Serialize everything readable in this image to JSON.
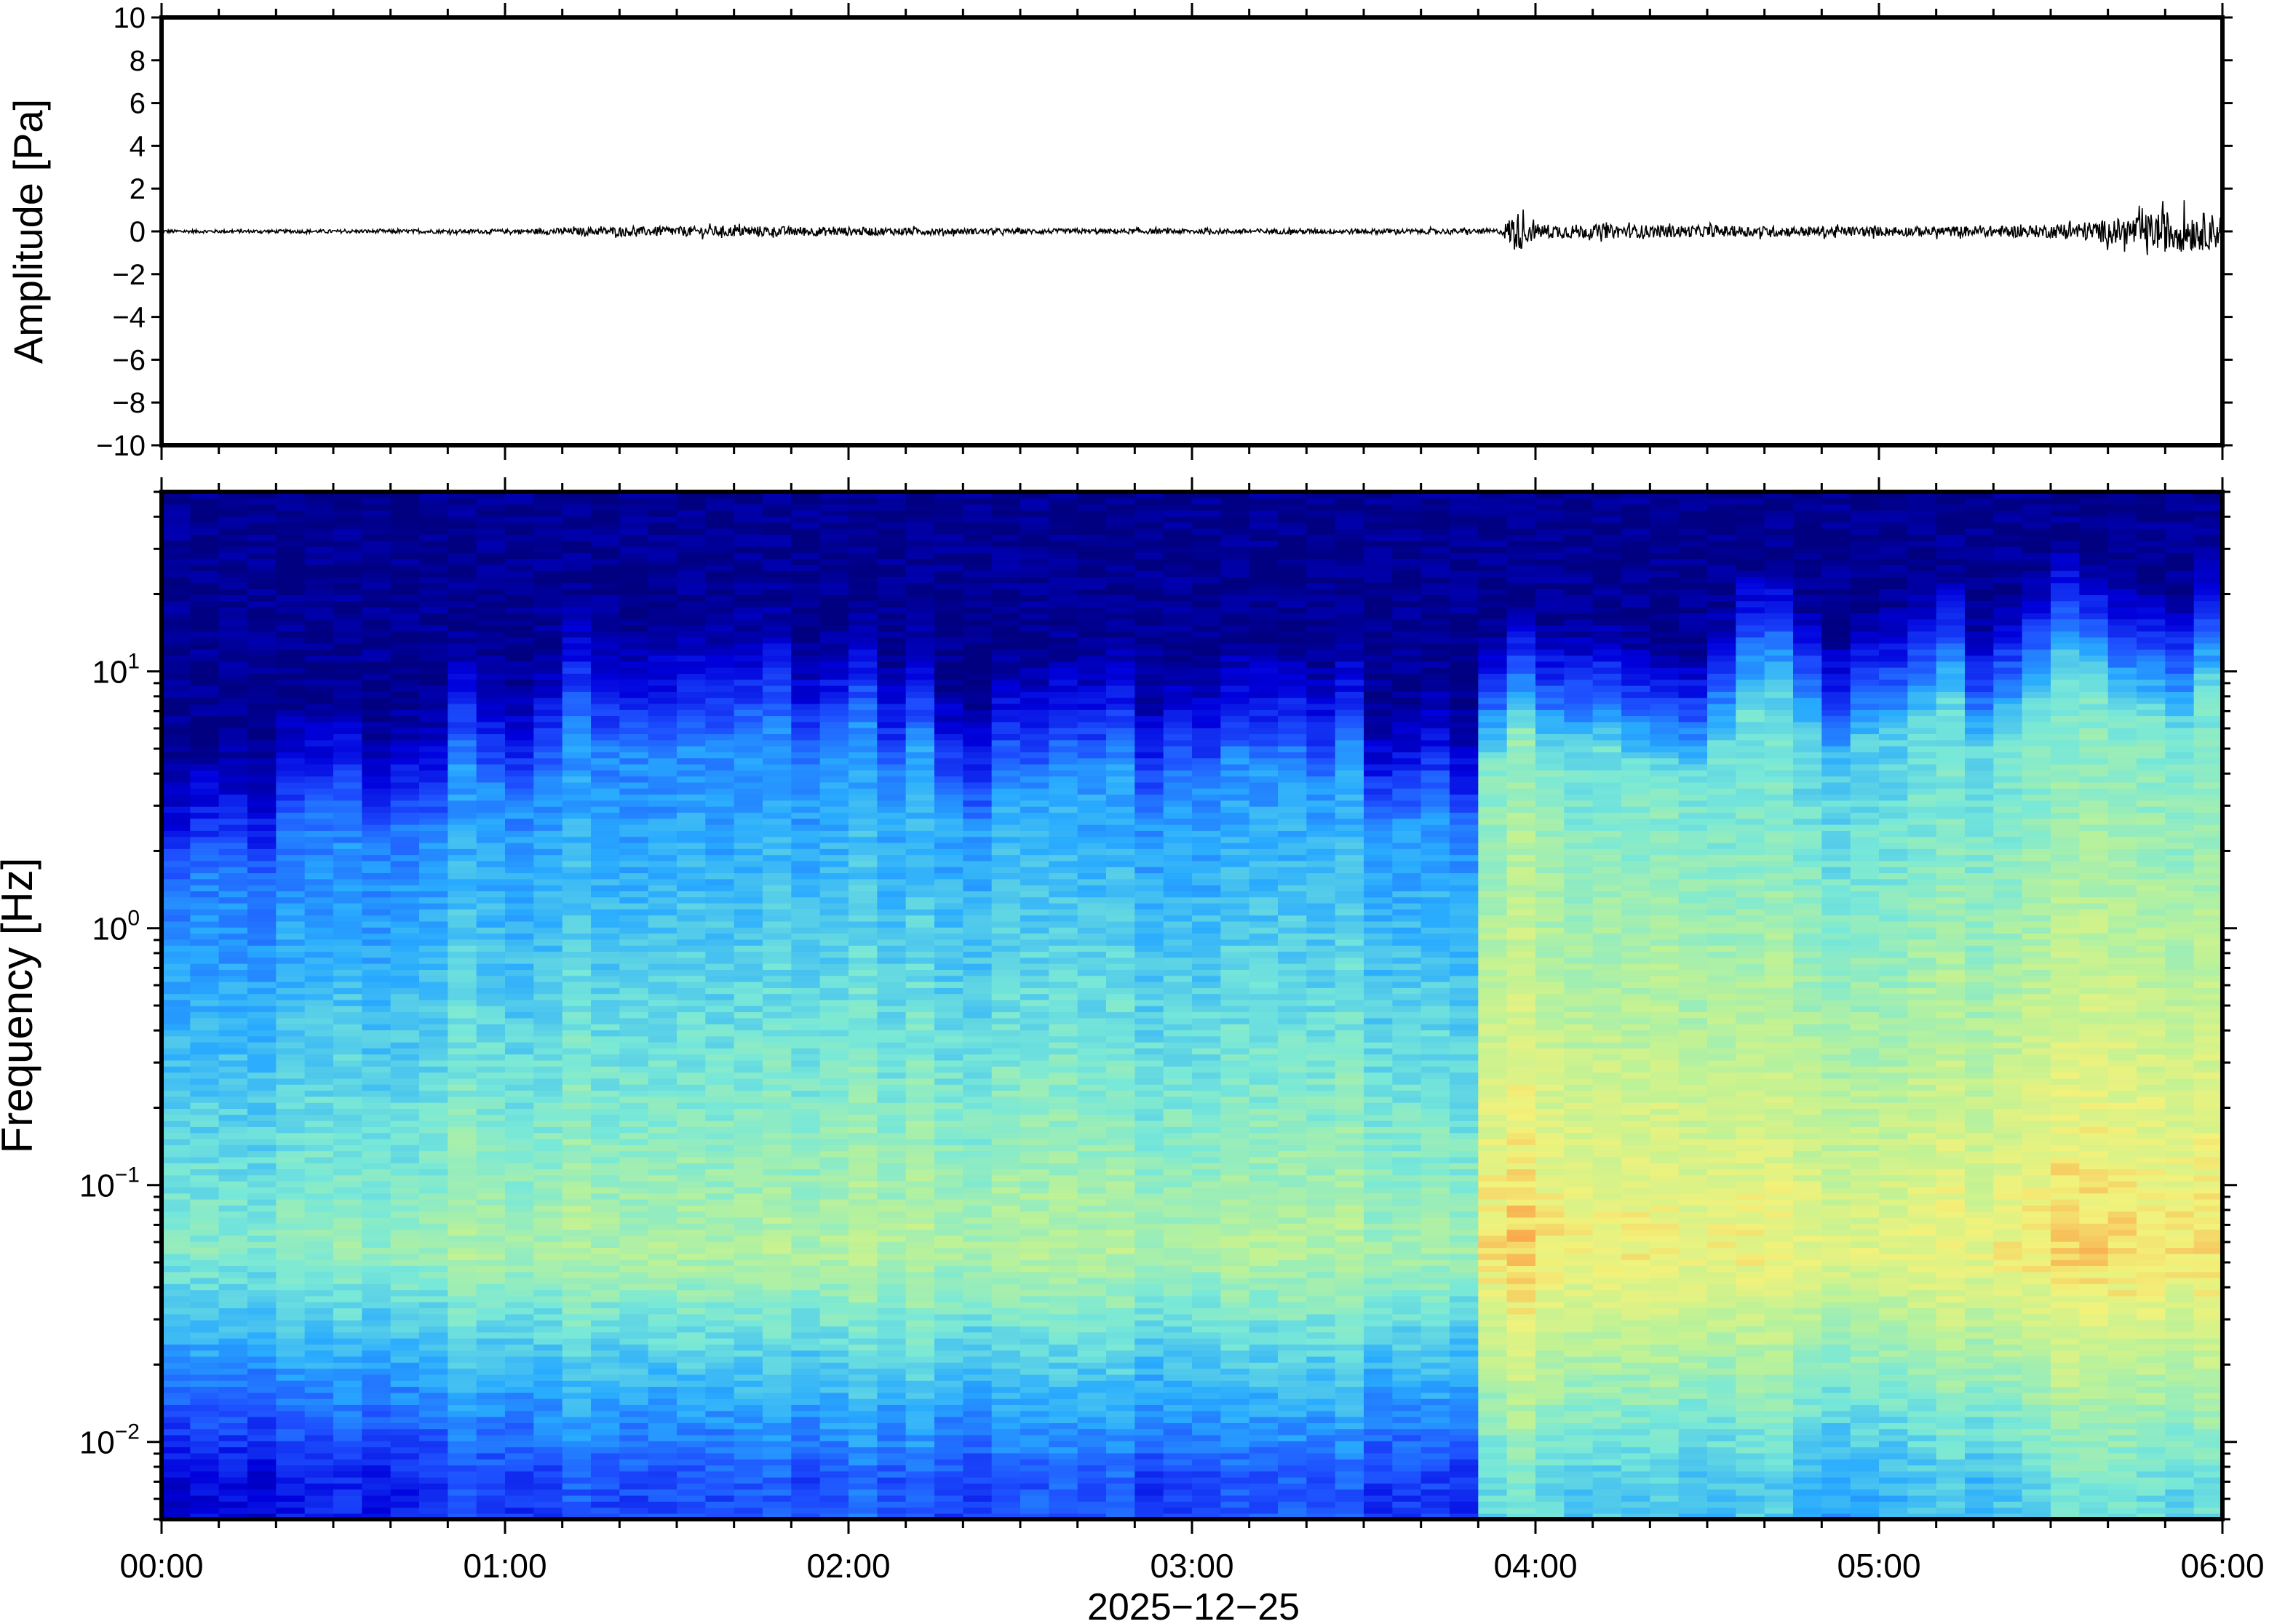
{
  "chart_data": [
    {
      "type": "line",
      "panel": "waveform",
      "ylabel": "Amplitude [Pa]",
      "ylim": [
        -10,
        10
      ],
      "yticks": [
        10,
        8,
        6,
        4,
        2,
        0,
        -2,
        -4,
        -6,
        -8,
        -10
      ],
      "ytick_labels": [
        "10",
        "8",
        "6",
        "4",
        "2",
        "0",
        "−2",
        "−4",
        "−6",
        "−8",
        "−10"
      ],
      "xlim": [
        "00:00",
        "06:00"
      ],
      "series": [
        {
          "color": "#000000",
          "envelope_time_hours": [
            0.0,
            0.5,
            1.0,
            1.3,
            1.7,
            2.0,
            2.5,
            3.0,
            3.5,
            3.9,
            3.94,
            4.0,
            4.3,
            4.6,
            5.0,
            5.3,
            5.5,
            5.7,
            5.85,
            6.0
          ],
          "envelope_amplitude_pa": [
            0.08,
            0.08,
            0.1,
            0.2,
            0.25,
            0.2,
            0.12,
            0.12,
            0.12,
            0.12,
            1.0,
            0.35,
            0.3,
            0.25,
            0.22,
            0.25,
            0.3,
            0.6,
            1.0,
            0.8
          ]
        }
      ],
      "grid": false
    },
    {
      "type": "heatmap",
      "panel": "spectrogram",
      "ylabel": "Frequency [Hz]",
      "yscale": "log",
      "ylim": [
        0.005,
        50
      ],
      "yticks": [
        0.01,
        0.1,
        1,
        10
      ],
      "ytick_labels": [
        {
          "base": "10",
          "exp": "−2"
        },
        {
          "base": "10",
          "exp": "−1"
        },
        {
          "base": "10",
          "exp": "0"
        },
        {
          "base": "10",
          "exp": "1"
        }
      ],
      "xlabel": "2025−12−25",
      "xtick_labels": [
        "00:00",
        "01:00",
        "02:00",
        "03:00",
        "04:00",
        "05:00",
        "06:00"
      ],
      "colormap": "jet",
      "colors": {
        "low": "#000080",
        "mid_low": "#1e50ff",
        "mid": "#78e8d8",
        "mid_high": "#f2f27a",
        "high": "#fb9b42"
      },
      "n_time_bins": 72,
      "n_freq_bins": 170,
      "upper_energy_edge_hz_by_hour": [
        [
          0.0,
          4.0
        ],
        [
          0.3,
          6.0
        ],
        [
          0.8,
          9.0
        ],
        [
          1.2,
          15.0
        ],
        [
          1.7,
          17.0
        ],
        [
          2.0,
          14.0
        ],
        [
          2.5,
          10.0
        ],
        [
          3.0,
          14.0
        ],
        [
          3.5,
          10.0
        ],
        [
          3.85,
          10.0
        ],
        [
          4.1,
          20.0
        ],
        [
          4.4,
          10.0
        ],
        [
          4.6,
          20.0
        ],
        [
          5.0,
          21.0
        ],
        [
          5.5,
          24.0
        ],
        [
          6.0,
          30.0
        ]
      ],
      "peak_band_hz": [
        0.03,
        0.1
      ],
      "intensity_by_hour": [
        [
          0.0,
          0.1
        ],
        [
          0.5,
          0.2
        ],
        [
          1.0,
          0.35
        ],
        [
          2.0,
          0.4
        ],
        [
          3.0,
          0.4
        ],
        [
          3.8,
          0.35
        ],
        [
          3.9,
          0.95
        ],
        [
          4.2,
          0.8
        ],
        [
          4.5,
          0.75
        ],
        [
          5.0,
          0.7
        ],
        [
          5.5,
          0.85
        ],
        [
          5.7,
          0.95
        ],
        [
          6.0,
          0.9
        ]
      ]
    }
  ]
}
